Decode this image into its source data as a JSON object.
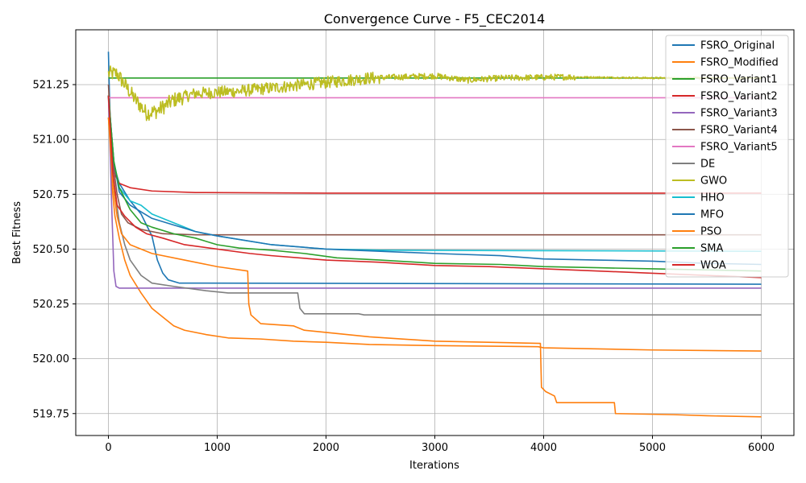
{
  "chart_data": {
    "type": "line",
    "title": "Convergence Curve - F5_CEC2014",
    "xlabel": "Iterations",
    "ylabel": "Best Fitness",
    "xlim": [
      -300,
      6300
    ],
    "ylim": [
      519.65,
      521.5
    ],
    "xticks": [
      0,
      1000,
      2000,
      3000,
      4000,
      5000,
      6000
    ],
    "yticks": [
      519.75,
      520.0,
      520.25,
      520.5,
      520.75,
      521.0,
      521.25
    ],
    "ytick_labels": [
      "519.75",
      "520.00",
      "520.25",
      "520.50",
      "520.75",
      "521.00",
      "521.25"
    ],
    "grid": true,
    "legend_position": "top-right",
    "series": [
      {
        "name": "FSRO_Original",
        "color": "#1f77b4",
        "points": [
          [
            0,
            521.4
          ],
          [
            20,
            521.0
          ],
          [
            50,
            520.88
          ],
          [
            100,
            520.8
          ],
          [
            200,
            520.72
          ],
          [
            300,
            520.66
          ],
          [
            400,
            520.56
          ],
          [
            450,
            520.45
          ],
          [
            500,
            520.39
          ],
          [
            550,
            520.36
          ],
          [
            650,
            520.345
          ],
          [
            6000,
            520.34
          ]
        ]
      },
      {
        "name": "FSRO_Modified",
        "color": "#ff7f0e",
        "points": [
          [
            0,
            521.2
          ],
          [
            30,
            520.8
          ],
          [
            60,
            520.65
          ],
          [
            100,
            520.55
          ],
          [
            150,
            520.45
          ],
          [
            200,
            520.38
          ],
          [
            300,
            520.3
          ],
          [
            400,
            520.23
          ],
          [
            500,
            520.19
          ],
          [
            600,
            520.15
          ],
          [
            700,
            520.13
          ],
          [
            900,
            520.11
          ],
          [
            1100,
            520.095
          ],
          [
            1400,
            520.09
          ],
          [
            1700,
            520.08
          ],
          [
            2000,
            520.075
          ],
          [
            2400,
            520.065
          ],
          [
            3000,
            520.06
          ],
          [
            3950,
            520.055
          ],
          [
            4000,
            520.05
          ],
          [
            5000,
            520.04
          ],
          [
            6000,
            520.035
          ]
        ]
      },
      {
        "name": "FSRO_Variant1",
        "color": "#2ca02c",
        "points": [
          [
            0,
            521.28
          ],
          [
            6000,
            521.28
          ]
        ]
      },
      {
        "name": "FSRO_Variant2",
        "color": "#d62728",
        "points": [
          [
            0,
            521.2
          ],
          [
            30,
            520.9
          ],
          [
            60,
            520.84
          ],
          [
            100,
            520.8
          ],
          [
            200,
            520.78
          ],
          [
            400,
            520.765
          ],
          [
            800,
            520.758
          ],
          [
            2000,
            520.755
          ],
          [
            6000,
            520.755
          ]
        ]
      },
      {
        "name": "FSRO_Variant3",
        "color": "#9467bd",
        "points": [
          [
            0,
            521.2
          ],
          [
            30,
            520.7
          ],
          [
            50,
            520.4
          ],
          [
            70,
            520.33
          ],
          [
            100,
            520.322
          ],
          [
            6000,
            520.322
          ]
        ]
      },
      {
        "name": "FSRO_Variant4",
        "color": "#8c564b",
        "points": [
          [
            0,
            521.25
          ],
          [
            40,
            520.9
          ],
          [
            80,
            520.75
          ],
          [
            120,
            520.66
          ],
          [
            180,
            520.62
          ],
          [
            300,
            520.59
          ],
          [
            500,
            520.57
          ],
          [
            800,
            520.565
          ],
          [
            6000,
            520.565
          ]
        ]
      },
      {
        "name": "FSRO_Variant5",
        "color": "#e377c2",
        "points": [
          [
            0,
            521.19
          ],
          [
            6000,
            521.19
          ]
        ]
      },
      {
        "name": "DE",
        "color": "#7f7f7f",
        "points": [
          [
            0,
            521.1
          ],
          [
            50,
            520.8
          ],
          [
            100,
            520.62
          ],
          [
            150,
            520.52
          ],
          [
            200,
            520.45
          ],
          [
            300,
            520.38
          ],
          [
            400,
            520.345
          ],
          [
            600,
            520.33
          ],
          [
            900,
            520.31
          ],
          [
            1100,
            520.3
          ],
          [
            1740,
            520.3
          ],
          [
            1760,
            520.23
          ],
          [
            1800,
            520.205
          ],
          [
            2300,
            520.205
          ],
          [
            2350,
            520.2
          ],
          [
            6000,
            520.2
          ]
        ]
      },
      {
        "name": "GWO",
        "color": "#bcbd22",
        "noise": true,
        "points": [
          [
            0,
            521.3
          ],
          [
            80,
            521.3
          ],
          [
            150,
            521.25
          ],
          [
            250,
            521.18
          ],
          [
            350,
            521.12
          ],
          [
            450,
            521.13
          ],
          [
            600,
            521.18
          ],
          [
            800,
            521.21
          ],
          [
            1200,
            521.22
          ],
          [
            1600,
            521.24
          ],
          [
            2000,
            521.26
          ],
          [
            2400,
            521.28
          ],
          [
            3000,
            521.29
          ],
          [
            3300,
            521.27
          ],
          [
            3600,
            521.28
          ],
          [
            4200,
            521.285
          ],
          [
            5000,
            521.28
          ],
          [
            6000,
            521.28
          ]
        ]
      },
      {
        "name": "HHO",
        "color": "#17becf",
        "points": [
          [
            0,
            521.2
          ],
          [
            50,
            520.9
          ],
          [
            100,
            520.78
          ],
          [
            200,
            520.72
          ],
          [
            300,
            520.7
          ],
          [
            400,
            520.66
          ],
          [
            600,
            520.62
          ],
          [
            800,
            520.58
          ],
          [
            1000,
            520.56
          ],
          [
            1500,
            520.52
          ],
          [
            2000,
            520.5
          ],
          [
            2500,
            520.495
          ],
          [
            6000,
            520.49
          ]
        ]
      },
      {
        "name": "MFO",
        "color": "#1f77b4",
        "points": [
          [
            0,
            521.2
          ],
          [
            50,
            520.9
          ],
          [
            100,
            520.76
          ],
          [
            200,
            520.7
          ],
          [
            400,
            520.64
          ],
          [
            600,
            520.61
          ],
          [
            800,
            520.58
          ],
          [
            1000,
            520.56
          ],
          [
            1500,
            520.52
          ],
          [
            2000,
            520.5
          ],
          [
            2500,
            520.49
          ],
          [
            3000,
            520.48
          ],
          [
            3600,
            520.47
          ],
          [
            4000,
            520.455
          ],
          [
            4500,
            520.45
          ],
          [
            5000,
            520.445
          ],
          [
            5500,
            520.435
          ],
          [
            6000,
            520.43
          ]
        ]
      },
      {
        "name": "PSO",
        "color": "#ff7f0e",
        "points": [
          [
            0,
            521.1
          ],
          [
            40,
            520.8
          ],
          [
            80,
            520.65
          ],
          [
            120,
            520.57
          ],
          [
            200,
            520.52
          ],
          [
            400,
            520.48
          ],
          [
            700,
            520.45
          ],
          [
            900,
            520.43
          ],
          [
            1000,
            520.42
          ],
          [
            1280,
            520.4
          ],
          [
            1290,
            520.25
          ],
          [
            1310,
            520.2
          ],
          [
            1400,
            520.16
          ],
          [
            1700,
            520.15
          ],
          [
            1800,
            520.13
          ],
          [
            2000,
            520.12
          ],
          [
            2400,
            520.1
          ],
          [
            3000,
            520.08
          ],
          [
            3970,
            520.07
          ],
          [
            3980,
            519.87
          ],
          [
            4020,
            519.85
          ],
          [
            4100,
            519.83
          ],
          [
            4120,
            519.8
          ],
          [
            4650,
            519.8
          ],
          [
            4660,
            519.75
          ],
          [
            5200,
            519.745
          ],
          [
            5500,
            519.74
          ],
          [
            6000,
            519.735
          ]
        ]
      },
      {
        "name": "SMA",
        "color": "#2ca02c",
        "points": [
          [
            0,
            521.2
          ],
          [
            50,
            520.9
          ],
          [
            100,
            520.78
          ],
          [
            200,
            520.68
          ],
          [
            300,
            520.62
          ],
          [
            400,
            520.6
          ],
          [
            600,
            520.57
          ],
          [
            800,
            520.55
          ],
          [
            1000,
            520.52
          ],
          [
            1200,
            520.505
          ],
          [
            1500,
            520.495
          ],
          [
            1800,
            520.48
          ],
          [
            2100,
            520.46
          ],
          [
            2500,
            520.45
          ],
          [
            3000,
            520.435
          ],
          [
            3600,
            520.43
          ],
          [
            4000,
            520.42
          ],
          [
            4500,
            520.415
          ],
          [
            5000,
            520.41
          ],
          [
            5500,
            520.405
          ],
          [
            6000,
            520.4
          ]
        ]
      },
      {
        "name": "WOA",
        "color": "#d62728",
        "points": [
          [
            0,
            521.2
          ],
          [
            40,
            520.85
          ],
          [
            80,
            520.7
          ],
          [
            150,
            520.65
          ],
          [
            250,
            520.6
          ],
          [
            350,
            520.57
          ],
          [
            500,
            520.55
          ],
          [
            700,
            520.52
          ],
          [
            1000,
            520.5
          ],
          [
            1300,
            520.48
          ],
          [
            1500,
            520.47
          ],
          [
            2000,
            520.45
          ],
          [
            2500,
            520.44
          ],
          [
            3000,
            520.425
          ],
          [
            3500,
            520.42
          ],
          [
            4000,
            520.41
          ],
          [
            4500,
            520.4
          ],
          [
            5000,
            520.39
          ],
          [
            5500,
            520.38
          ],
          [
            6000,
            520.37
          ]
        ]
      }
    ]
  }
}
